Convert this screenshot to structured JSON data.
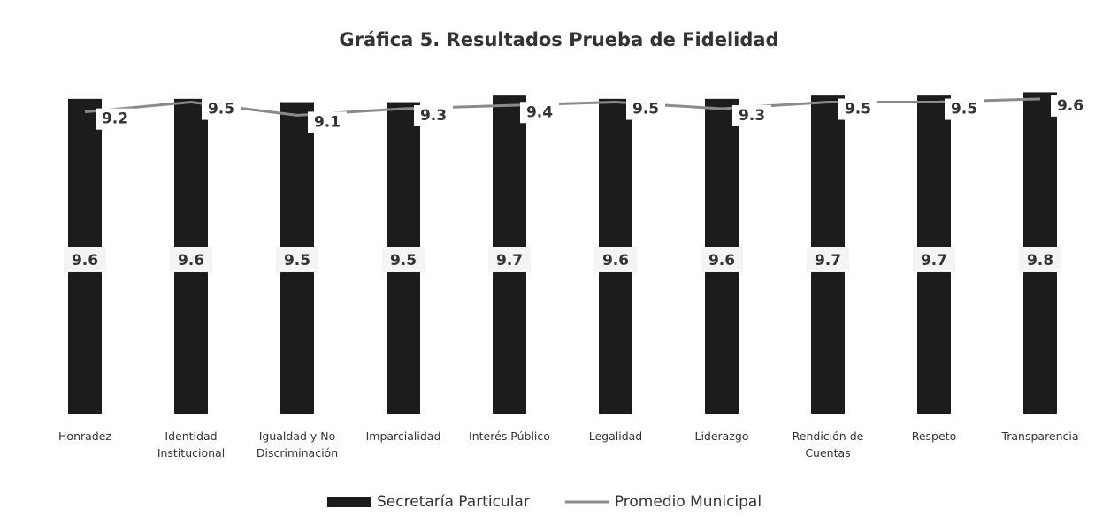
{
  "chart_data": {
    "type": "bar",
    "title": "Gráfica 5. Resultados Prueba de Fidelidad",
    "categories": [
      "Honradez",
      "Identidad Institucional",
      "Igualdad y No Discriminación",
      "Imparcialidad",
      "Interés Público",
      "Legalidad",
      "Liderazgo",
      "Rendición de Cuentas",
      "Respeto",
      "Transparencia"
    ],
    "series": [
      {
        "name": "Secretaría Particular",
        "type": "bar",
        "color": "#1c1c1c",
        "values": [
          9.6,
          9.6,
          9.5,
          9.5,
          9.7,
          9.6,
          9.6,
          9.7,
          9.7,
          9.8
        ]
      },
      {
        "name": "Promedio Municipal",
        "type": "line",
        "color": "#8a8a8a",
        "values": [
          9.2,
          9.5,
          9.1,
          9.3,
          9.4,
          9.5,
          9.3,
          9.5,
          9.5,
          9.6
        ]
      }
    ],
    "ylim": [
      0,
      10
    ],
    "legend": "bottom"
  }
}
